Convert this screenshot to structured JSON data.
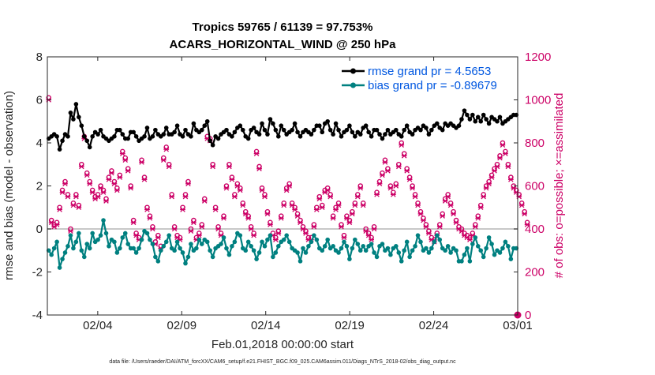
{
  "chart_data": {
    "type": "line",
    "title_line1": "Tropics 59765 / 61139 = 97.753%",
    "title_line2": "ACARS_HORIZONTAL_WIND @ 250 hPa",
    "xlabel": "Feb.01,2018 00:00:00 start",
    "ylabel_left": "rmse and bias (model - observation)",
    "ylabel_right": "# of obs: o=possible; ×=assimilated",
    "footer": "data file: /Users/raeder/DAI/ATM_forcXX/CAM6_setup/f.e21.FHIST_BGC.f09_025.CAM6assim.011/Diags_NTrS_2018-02/obs_diag_output.nc",
    "x_ticks": [
      {
        "value": 3,
        "label": "02/04"
      },
      {
        "value": 8,
        "label": "02/09"
      },
      {
        "value": 13,
        "label": "02/14"
      },
      {
        "value": 18,
        "label": "02/19"
      },
      {
        "value": 23,
        "label": "02/24"
      },
      {
        "value": 28,
        "label": "03/01"
      }
    ],
    "xlim": [
      0,
      28
    ],
    "ylim_left": [
      -4,
      8
    ],
    "yticks_left": [
      "-4",
      "-2",
      "0",
      "2",
      "4",
      "6",
      "8"
    ],
    "ylim_right": [
      0,
      1200
    ],
    "yticks_right": [
      "0",
      "200",
      "400",
      "600",
      "800",
      "1000",
      "1200"
    ],
    "legend": [
      {
        "label": "rmse grand pr = 4.5653",
        "color": "#000000"
      },
      {
        "label": "bias grand pr = -0.89679",
        "color": "#008080"
      }
    ],
    "rmse": [
      4.2,
      4.3,
      4.4,
      4.3,
      3.7,
      4.1,
      4.4,
      4.3,
      5.4,
      5.1,
      5.8,
      5.2,
      4.8,
      4.3,
      4.1,
      3.8,
      4.3,
      4.5,
      4.4,
      4.6,
      4.3,
      4.2,
      4.1,
      4.2,
      4.3,
      4.6,
      4.6,
      4.4,
      4.2,
      4.2,
      4.5,
      4.5,
      4.3,
      4.1,
      4.2,
      4.3,
      4.7,
      4.2,
      4.3,
      4.6,
      4.4,
      4.3,
      4.4,
      4.7,
      4.4,
      4.4,
      4.5,
      4.8,
      4.4,
      4.3,
      4.6,
      4.4,
      4.3,
      4.9,
      4.6,
      4.5,
      4.6,
      4.8,
      5.0,
      4.1,
      3.9,
      4.3,
      4.2,
      4.4,
      4.5,
      4.6,
      4.4,
      4.3,
      4.5,
      4.7,
      4.8,
      4.6,
      4.3,
      4.2,
      4.6,
      4.7,
      4.5,
      4.4,
      4.9,
      4.6,
      4.4,
      5.1,
      4.9,
      4.6,
      4.3,
      4.8,
      4.6,
      4.4,
      4.5,
      4.6,
      4.9,
      4.5,
      4.3,
      4.5,
      4.6,
      4.5,
      4.4,
      4.6,
      4.8,
      4.8,
      4.5,
      4.9,
      5.0,
      4.6,
      4.4,
      4.9,
      4.6,
      4.3,
      4.5,
      4.6,
      4.8,
      4.5,
      4.3,
      4.5,
      4.4,
      4.7,
      4.8,
      4.5,
      4.3,
      4.6,
      4.6,
      4.4,
      4.2,
      4.4,
      4.6,
      4.4,
      4.5,
      4.6,
      4.4,
      4.3,
      4.6,
      4.8,
      4.5,
      4.4,
      4.6,
      4.7,
      4.6,
      4.8,
      4.7,
      4.4,
      4.6,
      4.8,
      4.9,
      4.7,
      4.6,
      4.9,
      4.8,
      4.9,
      4.8,
      4.7,
      4.8,
      5.1,
      5.5,
      5.3,
      5.1,
      5.3,
      5.0,
      5.2,
      5.0,
      5.3,
      5.1,
      4.9,
      5.2,
      5.1,
      5.0,
      5.2,
      4.9,
      5.0,
      5.1,
      5.2,
      5.3,
      5.3
    ],
    "bias": [
      -1.0,
      -1.2,
      -0.9,
      -0.6,
      -1.8,
      -1.4,
      -1.1,
      -0.8,
      -0.3,
      -0.9,
      -0.6,
      -0.2,
      -1.0,
      -1.3,
      -0.7,
      -0.9,
      -0.2,
      -0.6,
      -0.5,
      -0.3,
      0.4,
      -0.2,
      -0.8,
      -0.5,
      -0.6,
      -1.1,
      -0.9,
      -0.4,
      -0.2,
      -0.7,
      -0.9,
      -0.9,
      -1.1,
      -0.9,
      -0.5,
      -0.1,
      -0.2,
      -0.5,
      -0.7,
      -1.3,
      -1.5,
      -1.0,
      -0.8,
      -0.6,
      -0.3,
      -0.9,
      -1.0,
      -0.6,
      -0.9,
      -1.1,
      -1.6,
      -1.3,
      -0.7,
      -1.0,
      -0.9,
      -0.5,
      -0.7,
      -0.5,
      -0.6,
      -1.0,
      -1.3,
      -0.9,
      -0.8,
      -0.7,
      -0.4,
      -0.9,
      -1.2,
      -0.8,
      -0.6,
      -0.2,
      -0.3,
      -0.9,
      -1.0,
      -0.6,
      -0.8,
      -1.0,
      -1.4,
      -1.1,
      -0.6,
      -0.8,
      -0.5,
      -0.3,
      -1.3,
      -1.1,
      -0.8,
      -0.6,
      -0.5,
      -0.3,
      -0.6,
      -0.9,
      -1.0,
      -1.1,
      -1.5,
      -0.9,
      -1.1,
      -0.8,
      -0.6,
      -0.3,
      -0.5,
      -0.9,
      -1.0,
      -0.8,
      -0.5,
      -0.9,
      -0.8,
      -1.0,
      -1.1,
      -0.9,
      -0.6,
      -0.8,
      -1.4,
      -0.9,
      -0.5,
      -0.7,
      -1.0,
      -0.8,
      -1.0,
      -0.8,
      -0.7,
      -1.1,
      -1.3,
      -0.8,
      -0.7,
      -1.0,
      -0.9,
      -1.2,
      -0.9,
      -0.8,
      -1.1,
      -1.5,
      -1.0,
      -0.6,
      -1.3,
      -1.0,
      -0.8,
      -0.3,
      -0.6,
      -1.0,
      -0.9,
      -1.1,
      -0.9,
      -0.6,
      -0.3,
      -0.5,
      -0.9,
      -1.0,
      -0.8,
      -1.1,
      -0.9,
      -1.0,
      -1.5,
      -1.5,
      -1.2,
      -0.9,
      -1.5,
      -0.7,
      -0.4,
      -0.8,
      -1.0,
      -1.3,
      -0.9,
      -0.4,
      -0.7,
      -1.2,
      -1.0,
      -1.1,
      -0.9,
      -0.6,
      -0.8,
      -1.4,
      -0.9,
      -0.9
    ],
    "obs_possible": [
      1010,
      440,
      420,
      430,
      500,
      580,
      620,
      560,
      400,
      520,
      560,
      510,
      700,
      830,
      660,
      620,
      580,
      550,
      560,
      600,
      580,
      540,
      640,
      670,
      620,
      590,
      650,
      760,
      730,
      680,
      600,
      440,
      380,
      360,
      720,
      640,
      500,
      460,
      410,
      340,
      370,
      320,
      730,
      780,
      700,
      560,
      410,
      370,
      360,
      500,
      560,
      620,
      400,
      440,
      360,
      380,
      420,
      540,
      830,
      820,
      700,
      500,
      410,
      380,
      460,
      600,
      700,
      640,
      560,
      610,
      590,
      520,
      480,
      460,
      410,
      380,
      760,
      690,
      590,
      560,
      480,
      430,
      380,
      360,
      390,
      460,
      520,
      590,
      610,
      520,
      500,
      470,
      440,
      410,
      390,
      360,
      360,
      420,
      500,
      550,
      510,
      580,
      590,
      560,
      460,
      500,
      520,
      420,
      370,
      460,
      440,
      480,
      520,
      560,
      600,
      520,
      400,
      380,
      360,
      410,
      570,
      620,
      660,
      720,
      680,
      600,
      570,
      610,
      700,
      800,
      750,
      680,
      640,
      600,
      560,
      520,
      480,
      450,
      420,
      390,
      360,
      350,
      380,
      420,
      470,
      540,
      560,
      520,
      480,
      440,
      410,
      400,
      380,
      370,
      360,
      380,
      420,
      460,
      510,
      560,
      600,
      620,
      650,
      680,
      700,
      740,
      800,
      760,
      700,
      640,
      600,
      580,
      560,
      520,
      480,
      430
    ],
    "obs_assimilated": [
      1000,
      430,
      410,
      420,
      490,
      570,
      610,
      550,
      390,
      510,
      550,
      500,
      690,
      820,
      650,
      610,
      570,
      540,
      550,
      590,
      570,
      530,
      630,
      660,
      610,
      580,
      640,
      750,
      720,
      670,
      590,
      430,
      370,
      350,
      710,
      630,
      490,
      450,
      400,
      330,
      360,
      310,
      720,
      770,
      690,
      550,
      400,
      360,
      350,
      490,
      550,
      610,
      390,
      430,
      350,
      370,
      410,
      530,
      820,
      810,
      690,
      490,
      400,
      370,
      450,
      590,
      690,
      630,
      550,
      600,
      580,
      510,
      470,
      450,
      400,
      370,
      750,
      680,
      580,
      550,
      470,
      420,
      370,
      350,
      380,
      450,
      510,
      580,
      600,
      510,
      490,
      460,
      430,
      400,
      380,
      350,
      350,
      410,
      490,
      540,
      500,
      570,
      580,
      550,
      450,
      490,
      510,
      410,
      360,
      450,
      430,
      470,
      510,
      550,
      590,
      510,
      390,
      370,
      350,
      400,
      560,
      610,
      650,
      710,
      670,
      590,
      560,
      600,
      690,
      790,
      740,
      670,
      630,
      590,
      550,
      510,
      470,
      440,
      410,
      380,
      350,
      340,
      370,
      410,
      460,
      530,
      550,
      510,
      470,
      430,
      400,
      390,
      370,
      360,
      350,
      370,
      410,
      450,
      500,
      550,
      590,
      610,
      640,
      670,
      690,
      730,
      790,
      750,
      690,
      630,
      590,
      570,
      550,
      510,
      470,
      420
    ],
    "colors": {
      "rmse": "#000000",
      "bias": "#008080",
      "obs": "#cc0066",
      "zero_line": "#c8c8c8",
      "legend_text": "#0057e0"
    }
  }
}
